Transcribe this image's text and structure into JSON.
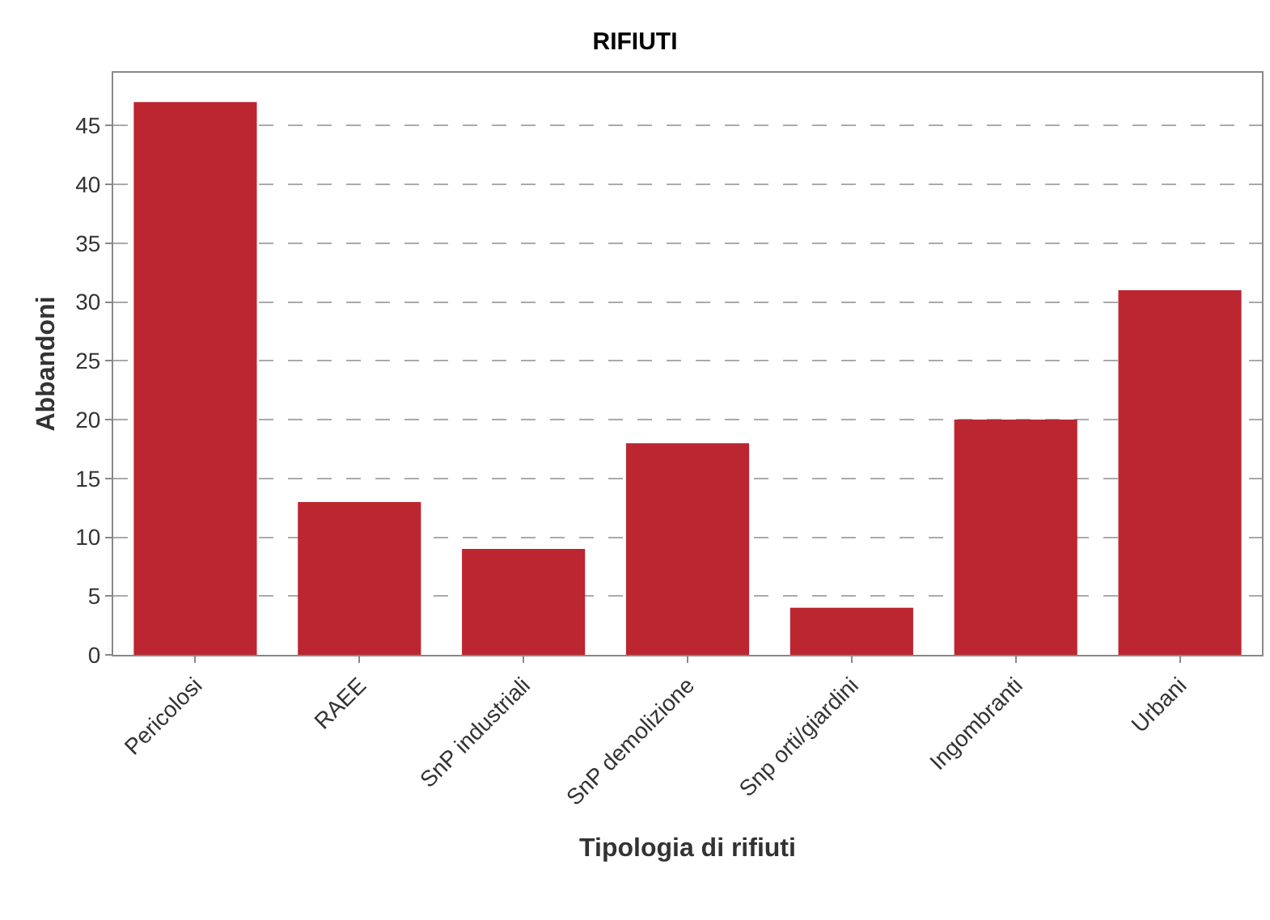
{
  "chart_data": {
    "type": "bar",
    "title": "RIFIUTI",
    "xlabel": "Tipologia di rifiuti",
    "ylabel": "Abbandoni",
    "categories": [
      "Pericolosi",
      "RAEE",
      "SnP industriali",
      "SnP demolizione",
      "Snp orti/giardini",
      "Ingombranti",
      "Urbani"
    ],
    "values": [
      47,
      13,
      9,
      18,
      4,
      20,
      31
    ],
    "color": "#bb2630",
    "ylim": [
      0,
      49.5
    ],
    "yticks": [
      0,
      5,
      10,
      15,
      20,
      25,
      30,
      35,
      40,
      45
    ],
    "grid": "y"
  }
}
